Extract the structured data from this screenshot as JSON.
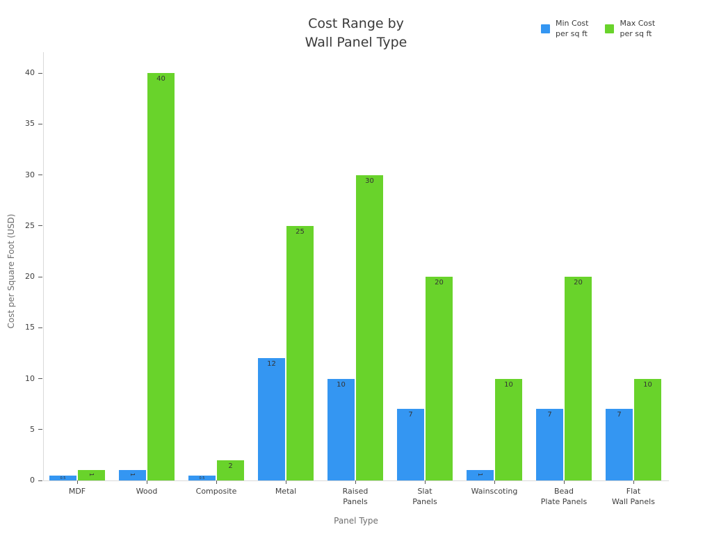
{
  "title": {
    "line1": "Cost Range by",
    "line2": "Wall Panel Type"
  },
  "legend": {
    "items": [
      {
        "name": "Min Cost per sq ft",
        "lines": [
          "Min Cost",
          "per sq ft"
        ],
        "color": "#3496F2"
      },
      {
        "name": "Max Cost per sq ft",
        "lines": [
          "Max Cost",
          "per sq ft"
        ],
        "color": "#69D32B"
      }
    ]
  },
  "axes": {
    "x_title": "Panel Type",
    "y_title": "Cost per Square Foot (USD)",
    "y_ticks": [
      0,
      5,
      10,
      15,
      20,
      25,
      30,
      35,
      40
    ]
  },
  "chart_data": {
    "type": "bar",
    "title": "Cost Range by Wall Panel Type",
    "xlabel": "Panel Type",
    "ylabel": "Cost per Square Foot (USD)",
    "categories": [
      "MDF",
      "Wood",
      "Composite",
      "Metal",
      "Raised Panels",
      "Slat Panels",
      "Wainscoting",
      "Bead Plate Panels",
      "Flat Wall Panels"
    ],
    "category_label_lines": [
      [
        "MDF"
      ],
      [
        "Wood"
      ],
      [
        "Composite"
      ],
      [
        "Metal"
      ],
      [
        "Raised",
        "Panels"
      ],
      [
        "Slat",
        "Panels"
      ],
      [
        "Wainscoting"
      ],
      [
        "Bead",
        "Plate Panels"
      ],
      [
        "Flat",
        "Wall Panels"
      ]
    ],
    "series": [
      {
        "name": "Min Cost per sq ft",
        "color": "#3496F2",
        "values": [
          0.5,
          1,
          0.5,
          12,
          10,
          7,
          1,
          7,
          7
        ]
      },
      {
        "name": "Max Cost per sq ft",
        "color": "#69D32B",
        "values": [
          1,
          40,
          2,
          25,
          30,
          20,
          10,
          20,
          10
        ]
      }
    ],
    "bar_value_labels": true,
    "ylim": [
      0,
      42
    ],
    "grid": false,
    "legend_position": "top-right"
  }
}
